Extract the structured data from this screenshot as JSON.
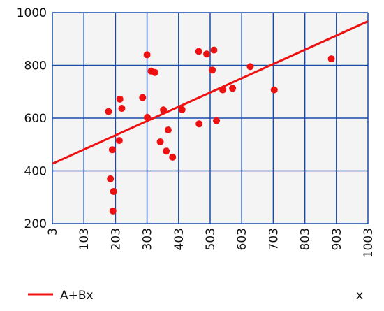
{
  "chart_data": {
    "type": "scatter",
    "title": "",
    "xlabel": "x",
    "ylabel": "",
    "xlim": [
      3,
      1003
    ],
    "ylim": [
      200,
      1000
    ],
    "x_ticks": [
      "3",
      "103",
      "203",
      "303",
      "403",
      "503",
      "603",
      "703",
      "803",
      "903",
      "1003"
    ],
    "y_ticks": [
      "200",
      "400",
      "600",
      "800",
      "1000"
    ],
    "grid": true,
    "legend_position": "bottom-left",
    "series": [
      {
        "type": "scatter",
        "color": "#ee1111",
        "points": [
          [
            181,
            625
          ],
          [
            187,
            370
          ],
          [
            193,
            480
          ],
          [
            195,
            248
          ],
          [
            197,
            322
          ],
          [
            215,
            515
          ],
          [
            217,
            672
          ],
          [
            223,
            637
          ],
          [
            289,
            678
          ],
          [
            303,
            840
          ],
          [
            304,
            603
          ],
          [
            316,
            778
          ],
          [
            328,
            773
          ],
          [
            345,
            510
          ],
          [
            355,
            631
          ],
          [
            364,
            475
          ],
          [
            370,
            555
          ],
          [
            384,
            452
          ],
          [
            414,
            632
          ],
          [
            467,
            853
          ],
          [
            468,
            578
          ],
          [
            492,
            843
          ],
          [
            510,
            782
          ],
          [
            515,
            858
          ],
          [
            523,
            590
          ],
          [
            543,
            707
          ],
          [
            574,
            713
          ],
          [
            630,
            795
          ],
          [
            706,
            707
          ],
          [
            887,
            825
          ]
        ]
      },
      {
        "type": "line",
        "name": "A+Bx",
        "color": "#ee1111",
        "points": [
          [
            3,
            427
          ],
          [
            1003,
            967
          ]
        ]
      }
    ],
    "colors": {
      "plot_background": "#f4f4f4",
      "grid": "#1a4aa8",
      "axis_text": "#111111"
    }
  }
}
